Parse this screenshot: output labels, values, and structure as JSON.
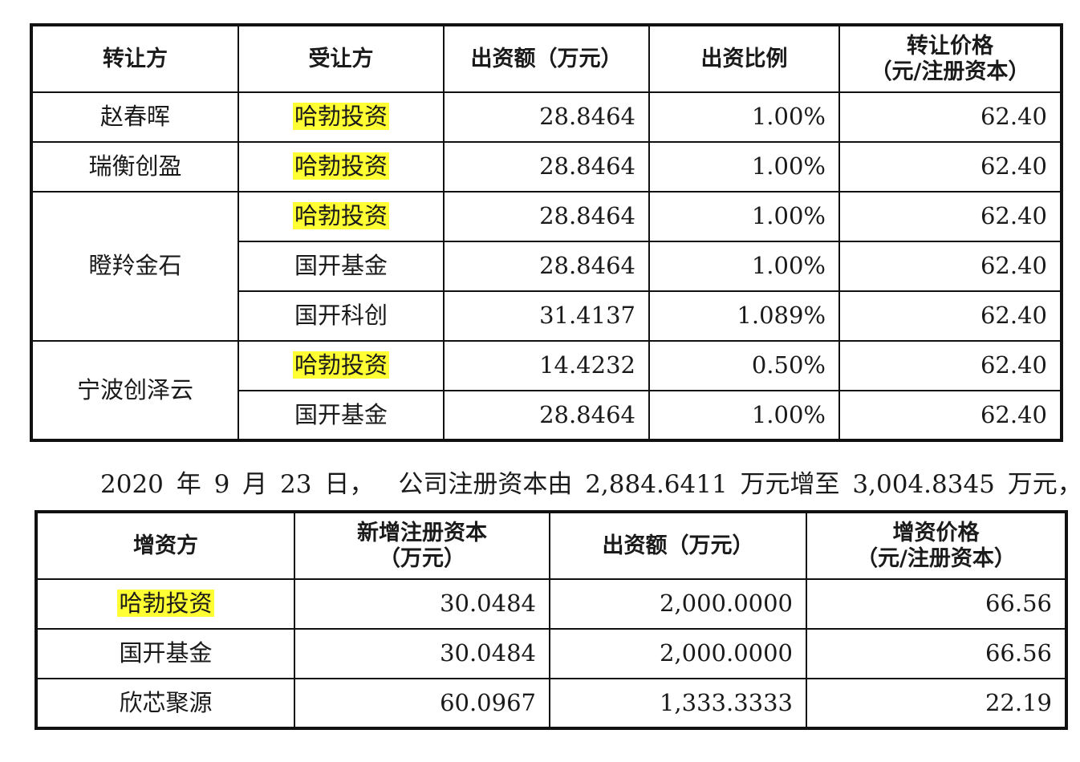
{
  "transfer_table": {
    "headers": {
      "transferor": "转让方",
      "transferee": "受让方",
      "amount": "出资额（万元）",
      "ratio": "出资比例",
      "price_line1": "转让价格",
      "price_line2": "（元/注册资本）"
    },
    "groups": [
      {
        "transferor": "赵春晖",
        "rows": [
          {
            "transferee": "哈勃投资",
            "highlighted": true,
            "amount": "28.8464",
            "ratio": "1.00%",
            "price": "62.40"
          }
        ]
      },
      {
        "transferor": "瑞衡创盈",
        "rows": [
          {
            "transferee": "哈勃投资",
            "highlighted": true,
            "amount": "28.8464",
            "ratio": "1.00%",
            "price": "62.40"
          }
        ]
      },
      {
        "transferor": "瞪羚金石",
        "rows": [
          {
            "transferee": "哈勃投资",
            "highlighted": true,
            "amount": "28.8464",
            "ratio": "1.00%",
            "price": "62.40"
          },
          {
            "transferee": "国开基金",
            "highlighted": false,
            "amount": "28.8464",
            "ratio": "1.00%",
            "price": "62.40"
          },
          {
            "transferee": "国开科创",
            "highlighted": false,
            "amount": "31.4137",
            "ratio": "1.089%",
            "price": "62.40"
          }
        ]
      },
      {
        "transferor": "宁波创泽云",
        "rows": [
          {
            "transferee": "哈勃投资",
            "highlighted": true,
            "amount": "14.4232",
            "ratio": "0.50%",
            "price": "62.40"
          },
          {
            "transferee": "国开基金",
            "highlighted": false,
            "amount": "28.8464",
            "ratio": "1.00%",
            "price": "62.40"
          }
        ]
      }
    ]
  },
  "sentence": {
    "part1": "2020 年 9 月 23 日，",
    "part2": "公司注册资本由 2,884.6411 万元增至 3,004.8345 万元，"
  },
  "increase_table": {
    "headers": {
      "investor": "增资方",
      "new_capital_line1": "新增注册资本",
      "new_capital_line2": "（万元）",
      "amount": "出资额（万元）",
      "price_line1": "增资价格",
      "price_line2": "（元/注册资本）"
    },
    "rows": [
      {
        "investor": "哈勃投资",
        "highlighted": true,
        "new_capital": "30.0484",
        "amount": "2,000.0000",
        "price": "66.56"
      },
      {
        "investor": "国开基金",
        "highlighted": false,
        "new_capital": "30.0484",
        "amount": "2,000.0000",
        "price": "66.56"
      },
      {
        "investor": "欣芯聚源",
        "highlighted": false,
        "new_capital": "60.0967",
        "amount": "1,333.3333",
        "price": "22.19"
      }
    ]
  },
  "highlight_color": "#ffff33"
}
